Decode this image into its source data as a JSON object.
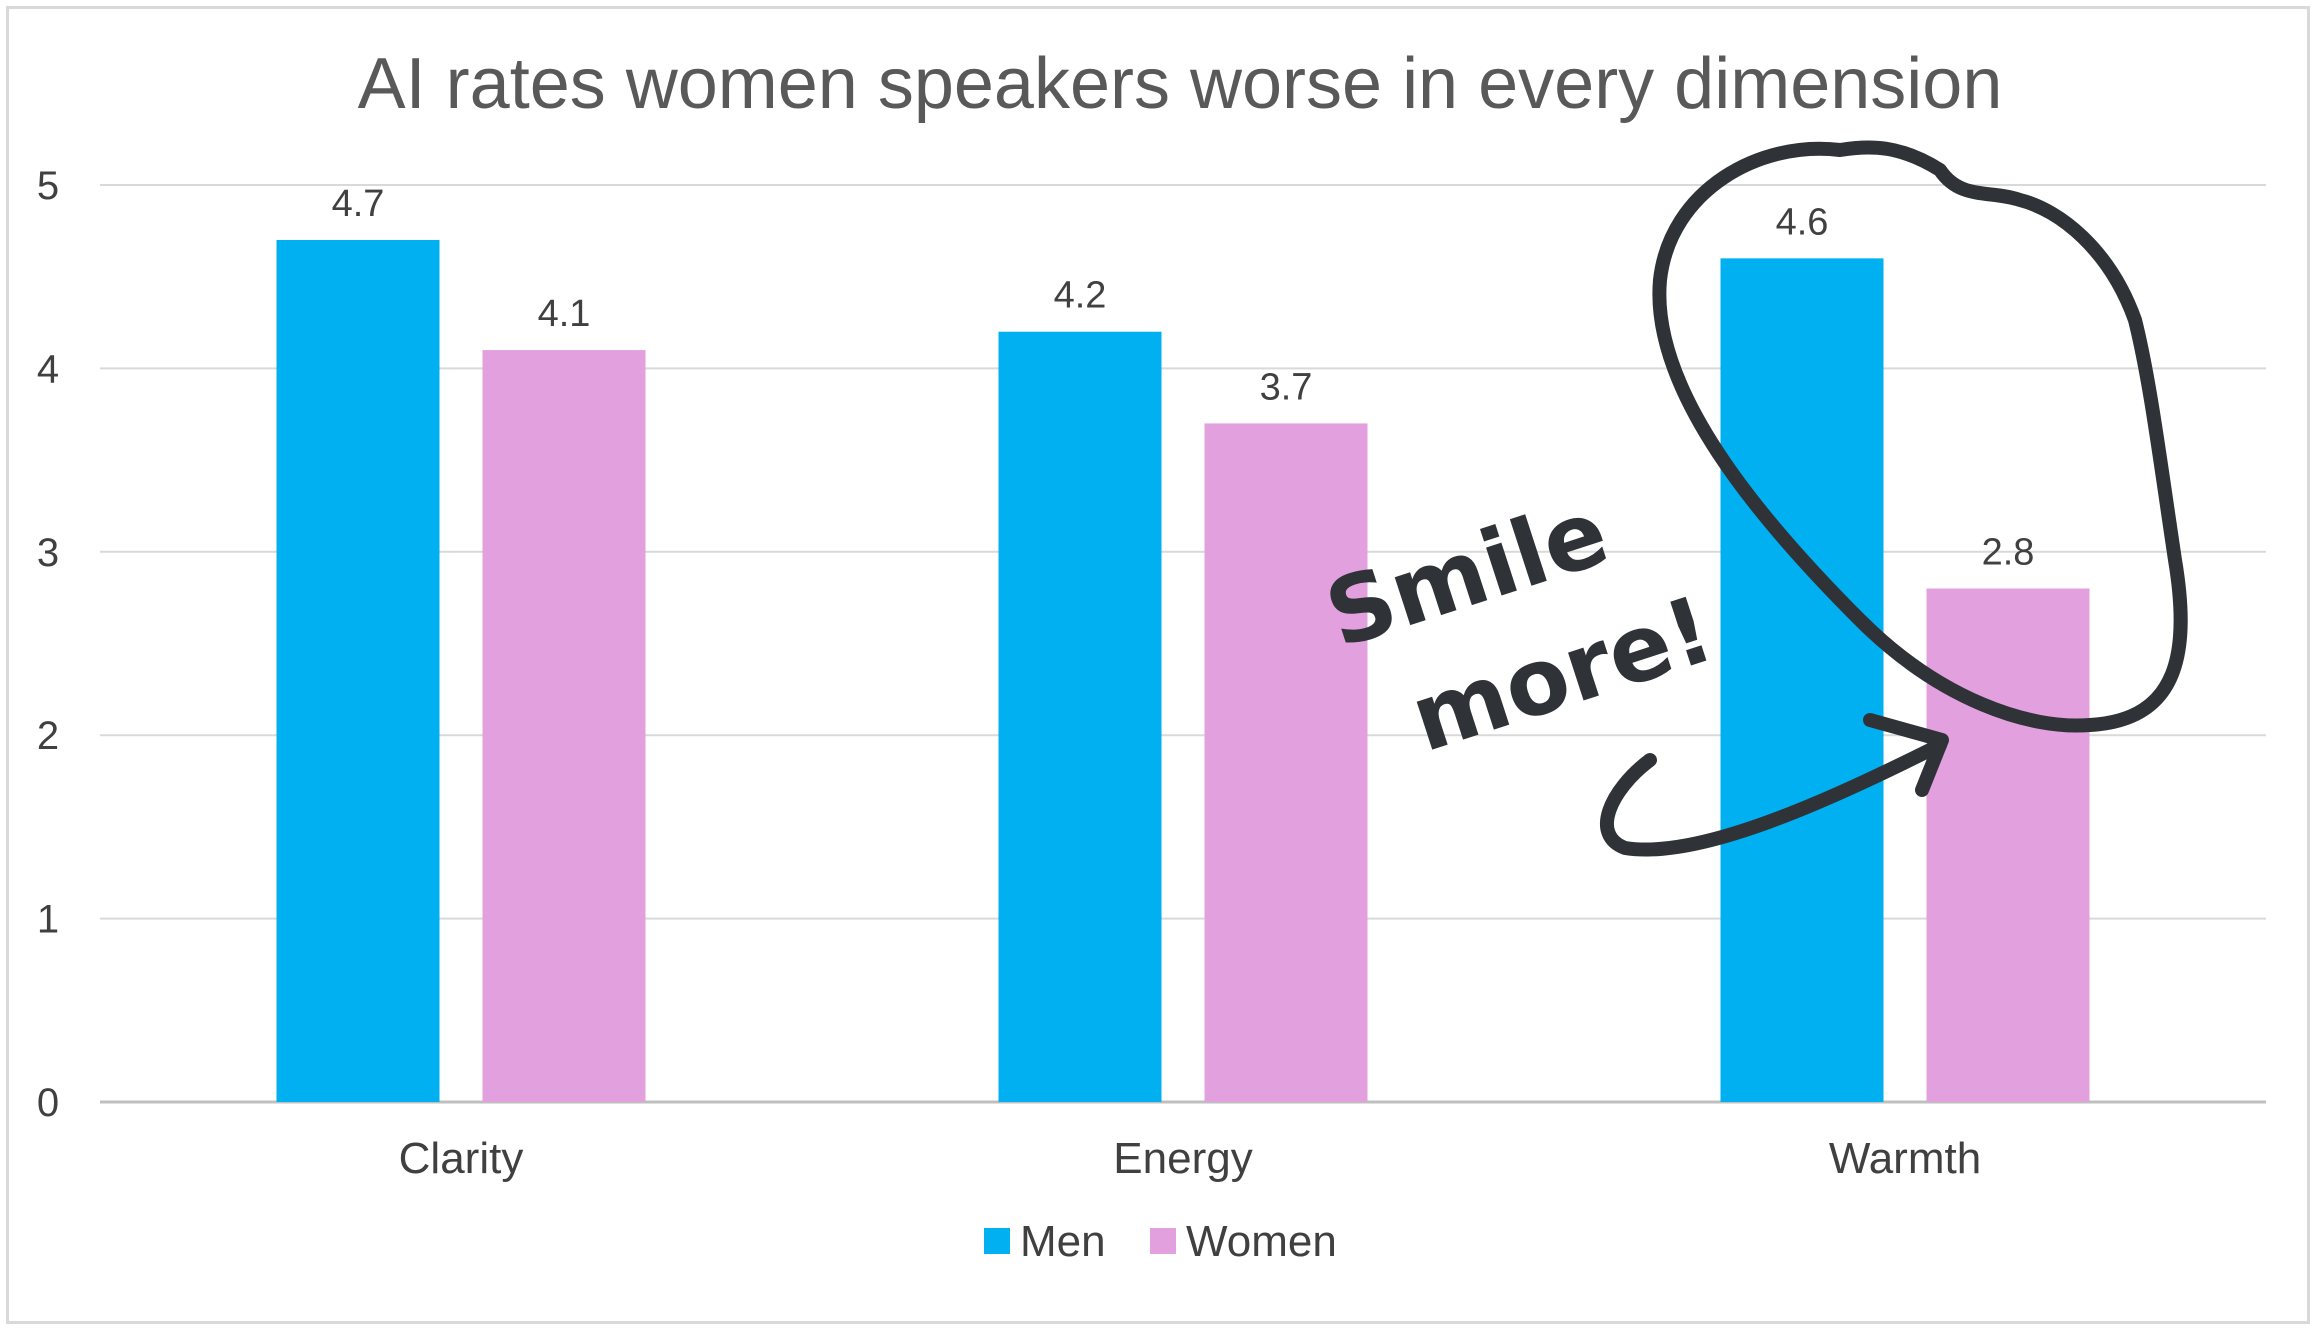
{
  "chart_data": {
    "type": "bar",
    "title": "AI rates women speakers worse in every dimension",
    "categories": [
      "Clarity",
      "Energy",
      "Warmth"
    ],
    "series": [
      {
        "name": "Men",
        "values": [
          4.7,
          4.2,
          4.6
        ],
        "labels": [
          "4.7",
          "4.2",
          "4.6"
        ],
        "color": "#00b0f0"
      },
      {
        "name": "Women",
        "values": [
          4.1,
          3.7,
          2.8
        ],
        "labels": [
          "4.1",
          "3.7",
          "2.8"
        ],
        "color": "#e3a0de"
      }
    ],
    "ylim": [
      0,
      5
    ],
    "yticks": [
      "0",
      "1",
      "2",
      "3",
      "4",
      "5"
    ],
    "grid": true,
    "legend_position": "bottom",
    "annotation": {
      "text_line1": "Smile",
      "text_line2": "more!",
      "style": "handwritten",
      "color": "#2f3337",
      "target": "Warmth"
    }
  }
}
